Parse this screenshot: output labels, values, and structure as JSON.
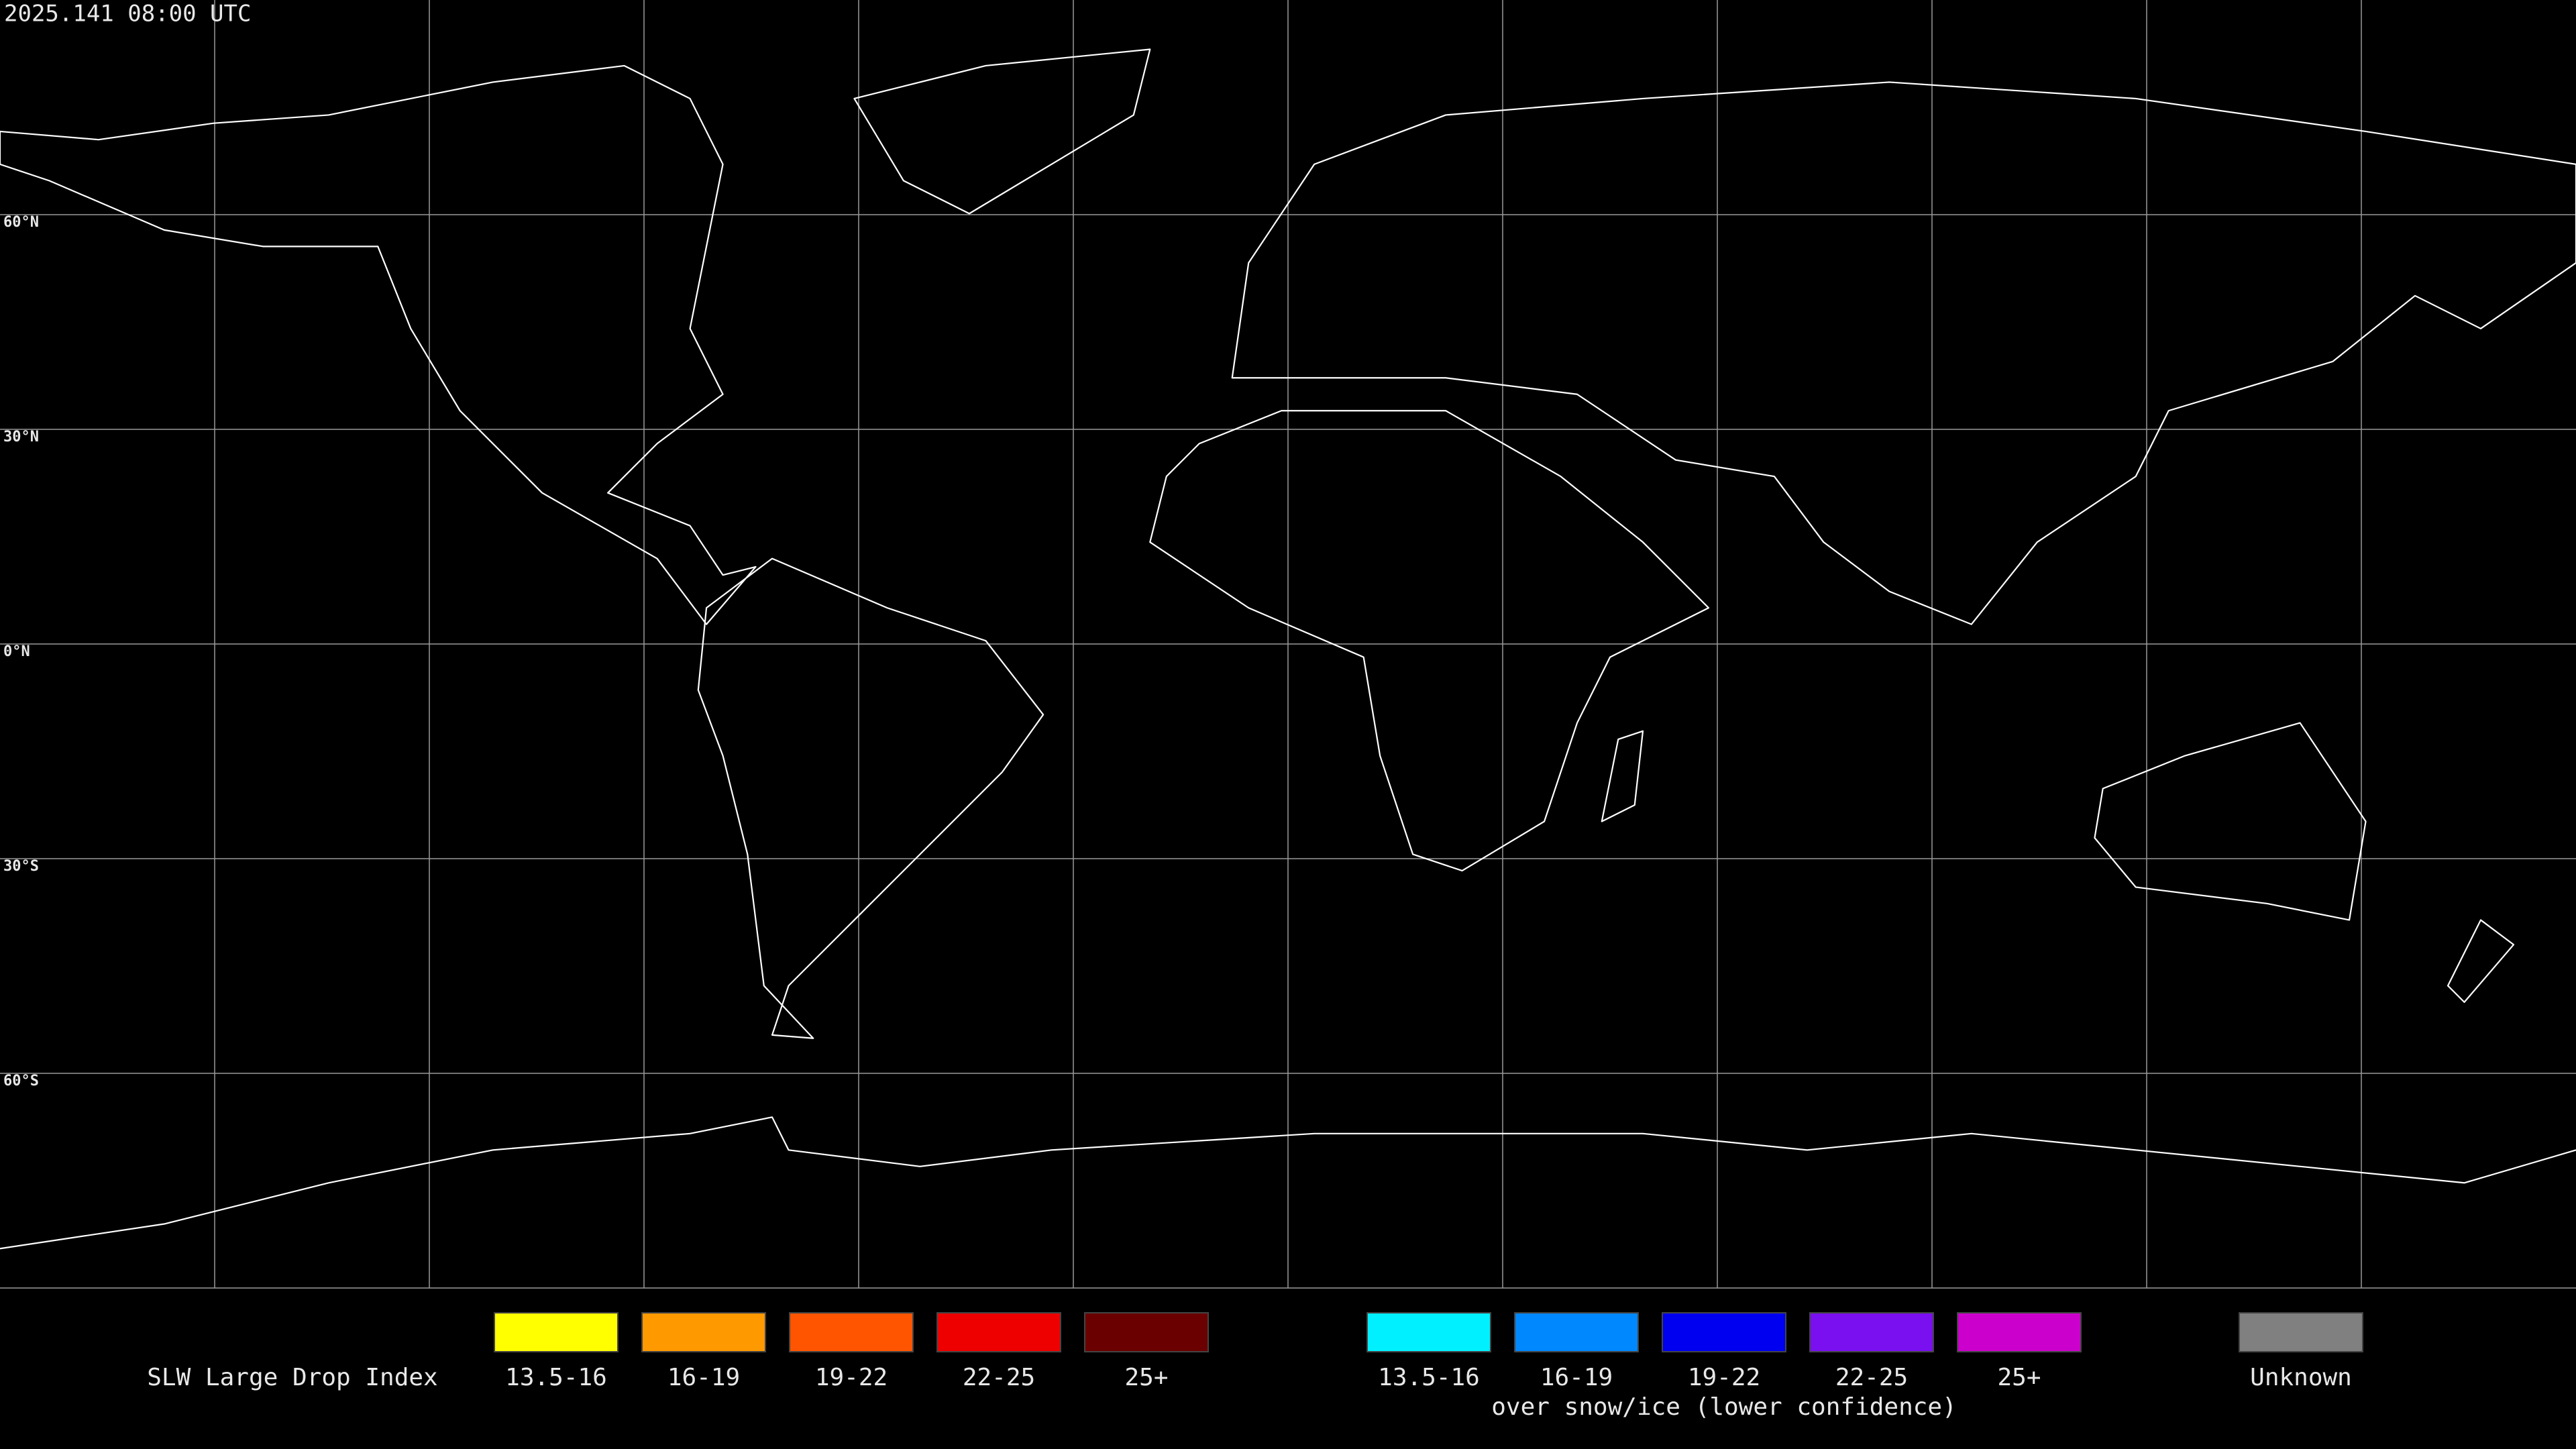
{
  "header": {
    "timestamp": "2025.141 08:00 UTC"
  },
  "map": {
    "lat_labels": [
      "60°N",
      "30°N",
      "0°N",
      "30°S",
      "60°S"
    ]
  },
  "legend": {
    "title": "SLW Large Drop Index",
    "groups": [
      {
        "items": [
          {
            "label": "13.5-16",
            "color": "#ffff00"
          },
          {
            "label": "16-19",
            "color": "#ff9900"
          },
          {
            "label": "19-22",
            "color": "#ff5500"
          },
          {
            "label": "22-25",
            "color": "#ee0000"
          },
          {
            "label": "25+",
            "color": "#6a0000"
          }
        ]
      },
      {
        "caption": "over snow/ice (lower confidence)",
        "items": [
          {
            "label": "13.5-16",
            "color": "#00f0ff"
          },
          {
            "label": "16-19",
            "color": "#0088ff"
          },
          {
            "label": "19-22",
            "color": "#0000f0"
          },
          {
            "label": "22-25",
            "color": "#7a10f0"
          },
          {
            "label": "25+",
            "color": "#cc00cc"
          }
        ]
      },
      {
        "items": [
          {
            "label": "Unknown",
            "color": "#808080"
          }
        ]
      }
    ]
  }
}
